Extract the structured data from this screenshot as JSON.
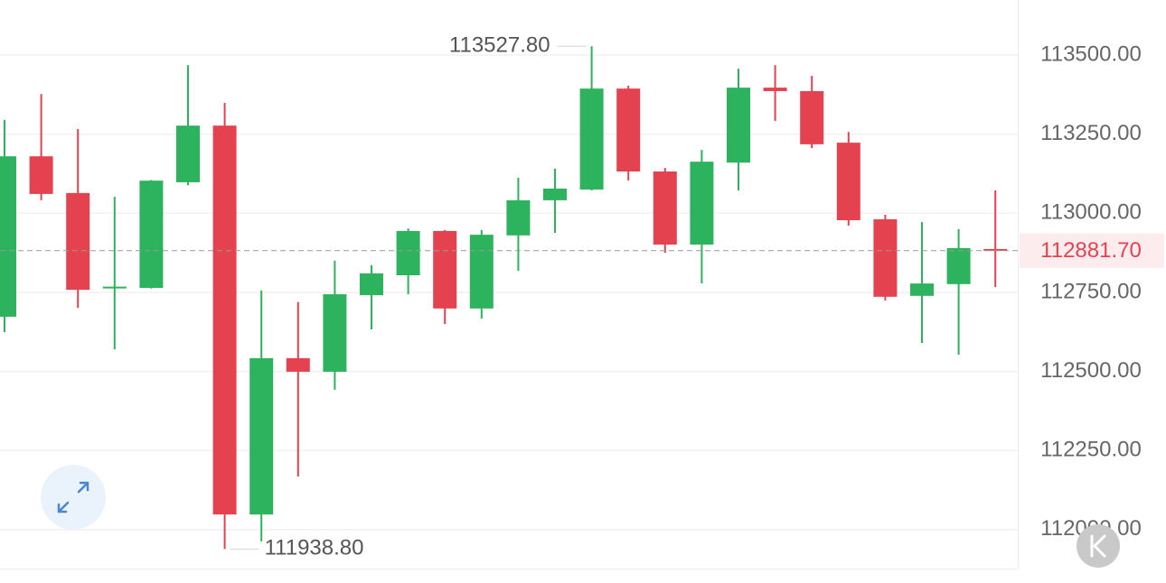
{
  "chart_data": {
    "type": "candlestick",
    "up_color": "#2db35d",
    "down_color": "#e5424f",
    "ylim": [
      111877,
      113674
    ],
    "yticks": [
      {
        "value": 112000,
        "label": "112000.00"
      },
      {
        "value": 112250,
        "label": "112250.00"
      },
      {
        "value": 112500,
        "label": "112500.00"
      },
      {
        "value": 112750,
        "label": "112750.00"
      },
      {
        "value": 113000,
        "label": "113000.00"
      },
      {
        "value": 113250,
        "label": "113250.00"
      },
      {
        "value": 113500,
        "label": "113500.00"
      }
    ],
    "grid": true,
    "candles": [
      {
        "open": 112673,
        "high": 113295,
        "low": 112624,
        "close": 113180
      },
      {
        "open": 113180,
        "high": 113377,
        "low": 113041,
        "close": 113061
      },
      {
        "open": 113064,
        "high": 113266,
        "low": 112701,
        "close": 112758
      },
      {
        "open": 112763,
        "high": 113052,
        "low": 112570,
        "close": 112768
      },
      {
        "open": 112764,
        "high": 113105,
        "low": 112762,
        "close": 113103
      },
      {
        "open": 113098,
        "high": 113468,
        "low": 113089,
        "close": 113277
      },
      {
        "open": 113277,
        "high": 113349,
        "low": 111938.8,
        "close": 112048
      },
      {
        "open": 112048,
        "high": 112756,
        "low": 111963,
        "close": 112542
      },
      {
        "open": 112542,
        "high": 112719,
        "low": 112168,
        "close": 112499
      },
      {
        "open": 112499,
        "high": 112850,
        "low": 112442,
        "close": 112744
      },
      {
        "open": 112741,
        "high": 112836,
        "low": 112633,
        "close": 112810
      },
      {
        "open": 112804,
        "high": 112952,
        "low": 112744,
        "close": 112944
      },
      {
        "open": 112944,
        "high": 112947,
        "low": 112650,
        "close": 112699
      },
      {
        "open": 112699,
        "high": 112947,
        "low": 112667,
        "close": 112932
      },
      {
        "open": 112930,
        "high": 113112,
        "low": 112818,
        "close": 113041
      },
      {
        "open": 113041,
        "high": 113141,
        "low": 112938,
        "close": 113078
      },
      {
        "open": 113075,
        "high": 113527.8,
        "low": 113072,
        "close": 113394
      },
      {
        "open": 113394,
        "high": 113403,
        "low": 113103,
        "close": 113132
      },
      {
        "open": 113132,
        "high": 113143,
        "low": 112875,
        "close": 112901
      },
      {
        "open": 112901,
        "high": 113200,
        "low": 112778,
        "close": 113163
      },
      {
        "open": 113160,
        "high": 113457,
        "low": 113072,
        "close": 113397
      },
      {
        "open": 113397,
        "high": 113468,
        "low": 113292,
        "close": 113386
      },
      {
        "open": 113386,
        "high": 113434,
        "low": 113206,
        "close": 113218
      },
      {
        "open": 113223,
        "high": 113257,
        "low": 112961,
        "close": 112978
      },
      {
        "open": 112981,
        "high": 112995,
        "low": 112724,
        "close": 112736
      },
      {
        "open": 112739,
        "high": 112972,
        "low": 112590,
        "close": 112778
      },
      {
        "open": 112776,
        "high": 112950,
        "low": 112553,
        "close": 112890
      },
      {
        "open": 112887,
        "high": 113072,
        "low": 112767,
        "close": 112881.7
      }
    ],
    "annotations": [
      {
        "value": 113527.8,
        "label": "113527.80"
      },
      {
        "value": 111938.8,
        "label": "111938.80"
      }
    ],
    "last_price": {
      "value": 112881.7,
      "label": "112881.70"
    }
  }
}
